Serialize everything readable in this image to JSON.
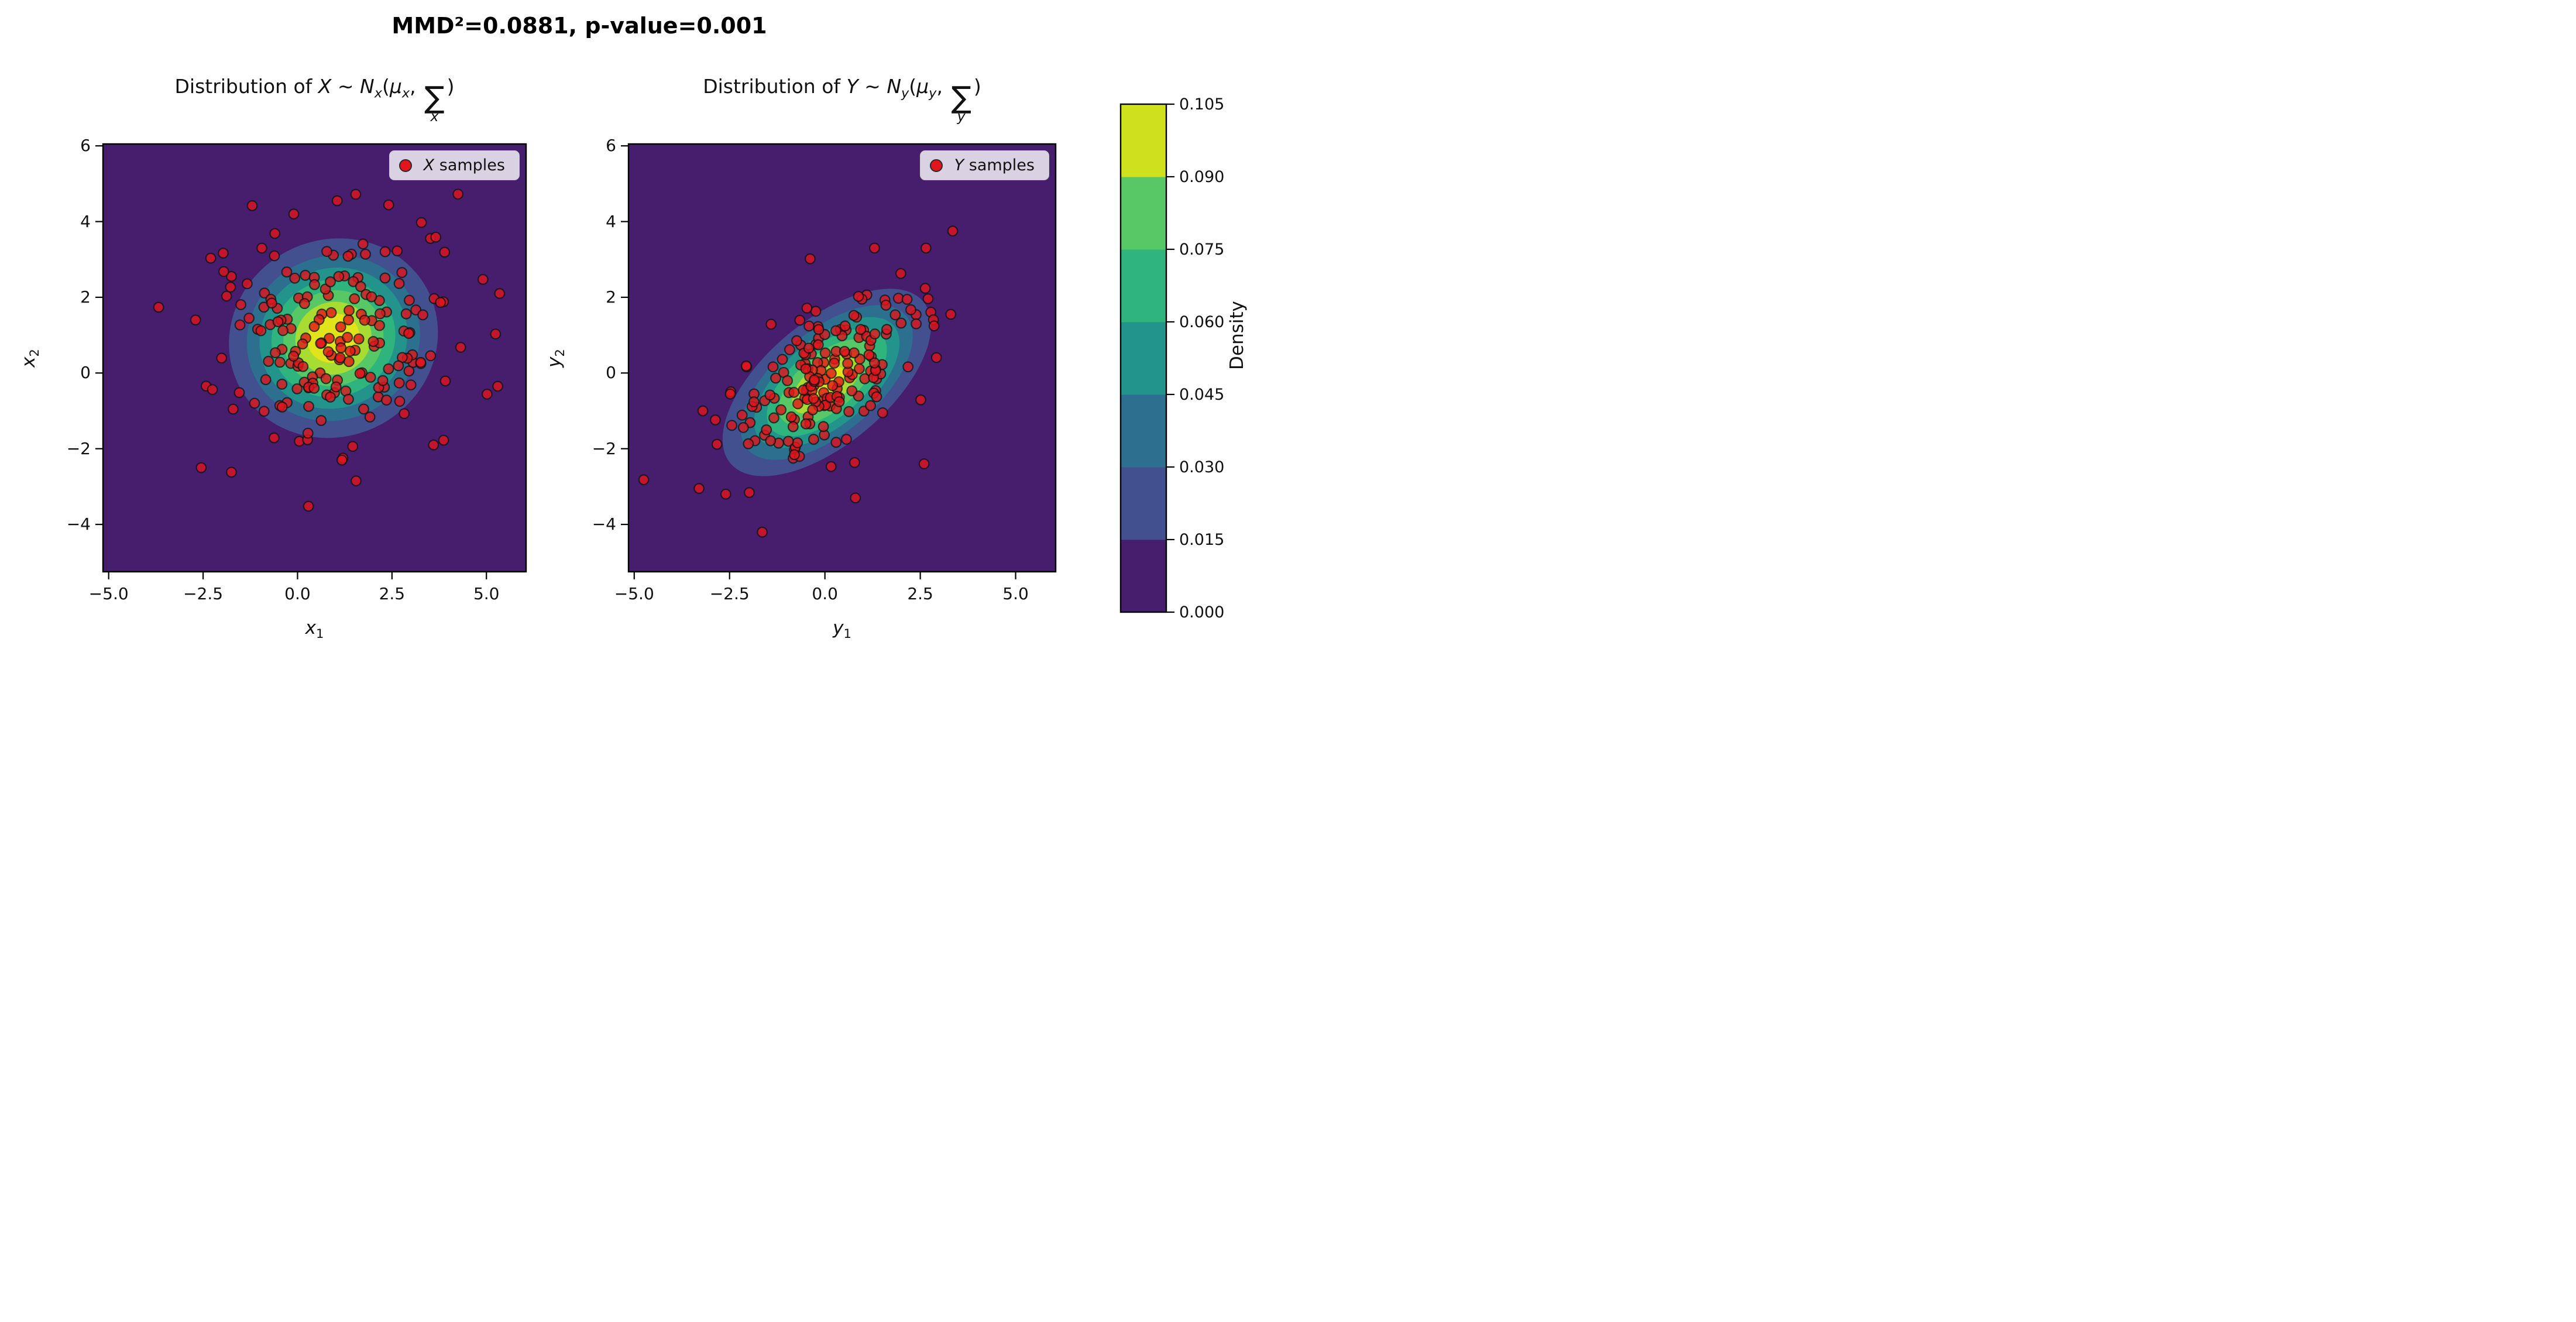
{
  "figure": {
    "suptitle": "MMD²=0.0881, p-value=0.001",
    "background": "#ffffff"
  },
  "panels": [
    {
      "title": {
        "prefix": "Distribution of ",
        "var": "X",
        "tilde": " ∼ ",
        "n": "N",
        "nsub": "x",
        "open": "(",
        "mu": "μ",
        "musub": "x",
        "comma": ", ",
        "sigma": "∑",
        "sigsub": "x",
        "close": ")"
      },
      "legend": {
        "var": "X",
        "label": " samples"
      },
      "xlabel": {
        "var": "x",
        "sub": "1"
      },
      "ylabel": {
        "var": "x",
        "sub": "2"
      },
      "xticks": {
        "labels": [
          "−5.0",
          "−2.5",
          "0.0",
          "2.5",
          "5.0"
        ],
        "values": [
          -5.0,
          -2.5,
          0.0,
          2.5,
          5.0
        ]
      },
      "yticks": {
        "labels": [
          "6",
          "4",
          "2",
          "0",
          "−2",
          "−4"
        ],
        "values": [
          6,
          4,
          2,
          0,
          -2,
          -4
        ]
      }
    },
    {
      "title": {
        "prefix": "Distribution of ",
        "var": "Y",
        "tilde": " ∼ ",
        "n": "N",
        "nsub": "y",
        "open": "(",
        "mu": "μ",
        "musub": "y",
        "comma": ", ",
        "sigma": "∑",
        "sigsub": "y",
        "close": ")"
      },
      "legend": {
        "var": "Y",
        "label": " samples"
      },
      "xlabel": {
        "var": "y",
        "sub": "1"
      },
      "ylabel": {
        "var": "y",
        "sub": "2"
      },
      "xticks": {
        "labels": [
          "−5.0",
          "−2.5",
          "0.0",
          "2.5",
          "5.0"
        ],
        "values": [
          -5.0,
          -2.5,
          0.0,
          2.5,
          5.0
        ]
      },
      "yticks": {
        "labels": [
          "6",
          "4",
          "2",
          "0",
          "−2",
          "−4"
        ],
        "values": [
          6,
          4,
          2,
          0,
          -2,
          -4
        ]
      }
    }
  ],
  "colorbar": {
    "label": "Density",
    "tick_labels": [
      "0.000",
      "0.015",
      "0.030",
      "0.045",
      "0.060",
      "0.075",
      "0.090",
      "0.105"
    ],
    "tick_values": [
      0.0,
      0.015,
      0.03,
      0.045,
      0.06,
      0.075,
      0.09,
      0.105
    ],
    "band_colors_bottom_to_top": [
      "#471d6e",
      "#42508f",
      "#2c6f8e",
      "#23948c",
      "#2eb47c",
      "#58c765",
      "#cfe11d"
    ]
  },
  "colors": {
    "background_band": "#471d6e",
    "marker_fill": "#e3151c",
    "marker_edge": "#141414",
    "spine": "#000000",
    "legend_bg": "rgba(255,255,255,0.8)",
    "legend_border": "#c9c9c9"
  },
  "chart_data": {
    "type": "contour",
    "description": "Two filled-contour (viridis) bivariate Gaussian KDE plots with red sample scatter and a shared Density colorbar; MMD two-sample test result in the suptitle.",
    "mmd_squared": 0.0881,
    "p_value": 0.001,
    "levels": [
      0.0,
      0.015,
      0.03,
      0.045,
      0.06,
      0.075,
      0.09,
      0.105
    ],
    "plot_band_colors": [
      "#471d6e",
      "#42508f",
      "#2c6f8e",
      "#23948c",
      "#2eb47c",
      "#58c765",
      "#a9dc32",
      "#e2e41b"
    ],
    "marker": {
      "radius_px": 8.3,
      "opacity": 0.8,
      "fill": "#e3151c",
      "edge": "#141414",
      "edge_width": 2.2
    },
    "panels": [
      {
        "name": "X",
        "xlim": [
          -5.15,
          6.05
        ],
        "ylim": [
          -5.25,
          6.05
        ],
        "kde": {
          "center": [
            0.95,
            0.92
          ],
          "angle_deg": 25,
          "rings": [
            {
              "level": 0.015,
              "rx": 2.8,
              "ry": 2.6
            },
            {
              "level": 0.03,
              "rx": 2.32,
              "ry": 2.16
            },
            {
              "level": 0.045,
              "rx": 1.98,
              "ry": 1.84
            },
            {
              "level": 0.06,
              "rx": 1.66,
              "ry": 1.54
            },
            {
              "level": 0.075,
              "rx": 1.34,
              "ry": 1.25
            },
            {
              "level": 0.09,
              "rx": 1.02,
              "ry": 0.95
            },
            {
              "level": 0.105,
              "rx": 0.7,
              "ry": 0.64
            }
          ]
        },
        "scatter": {
          "n": 185,
          "seed": 11,
          "mean": [
            0.95,
            0.9
          ],
          "sigma_major": 1.52,
          "sigma_minor": 1.38,
          "angle_deg": 20,
          "outliers": [
            [
              5.35,
              2.1
            ],
            [
              5.3,
              -0.35
            ],
            [
              -1.2,
              4.42
            ],
            [
              1.05,
              4.55
            ],
            [
              -0.1,
              4.2
            ],
            [
              -2.55,
              -2.5
            ],
            [
              -1.75,
              -2.62
            ],
            [
              1.55,
              -2.85
            ],
            [
              3.6,
              -1.9
            ],
            [
              -2.7,
              1.4
            ]
          ]
        }
      },
      {
        "name": "Y",
        "xlim": [
          -5.15,
          6.05
        ],
        "ylim": [
          -5.25,
          6.05
        ],
        "kde": {
          "center": [
            0.05,
            -0.25
          ],
          "angle_deg": 40,
          "rings": [
            {
              "level": 0.015,
              "rx": 3.3,
              "ry": 1.63
            },
            {
              "level": 0.03,
              "rx": 2.72,
              "ry": 1.35
            },
            {
              "level": 0.045,
              "rx": 2.3,
              "ry": 1.14
            },
            {
              "level": 0.06,
              "rx": 1.9,
              "ry": 0.94
            },
            {
              "level": 0.075,
              "rx": 1.52,
              "ry": 0.75
            },
            {
              "level": 0.09,
              "rx": 1.1,
              "ry": 0.54
            },
            {
              "level": 0.105,
              "rx": 0.55,
              "ry": 0.27
            }
          ]
        },
        "scatter": {
          "n": 185,
          "seed": 23,
          "mean": [
            0.0,
            -0.25
          ],
          "sigma_major": 1.5,
          "sigma_minor": 0.82,
          "angle_deg": 42,
          "outliers": [
            [
              -4.75,
              -2.82
            ],
            [
              3.35,
              3.75
            ],
            [
              2.65,
              3.3
            ],
            [
              1.3,
              3.3
            ],
            [
              -3.3,
              -3.05
            ],
            [
              -2.6,
              -3.2
            ],
            [
              2.6,
              -2.4
            ],
            [
              3.3,
              1.55
            ],
            [
              -3.2,
              -1.0
            ],
            [
              0.8,
              -3.3
            ]
          ]
        }
      }
    ],
    "colorbar": {
      "label": "Density",
      "range": [
        0.0,
        0.105
      ],
      "n_bands": 7
    }
  }
}
